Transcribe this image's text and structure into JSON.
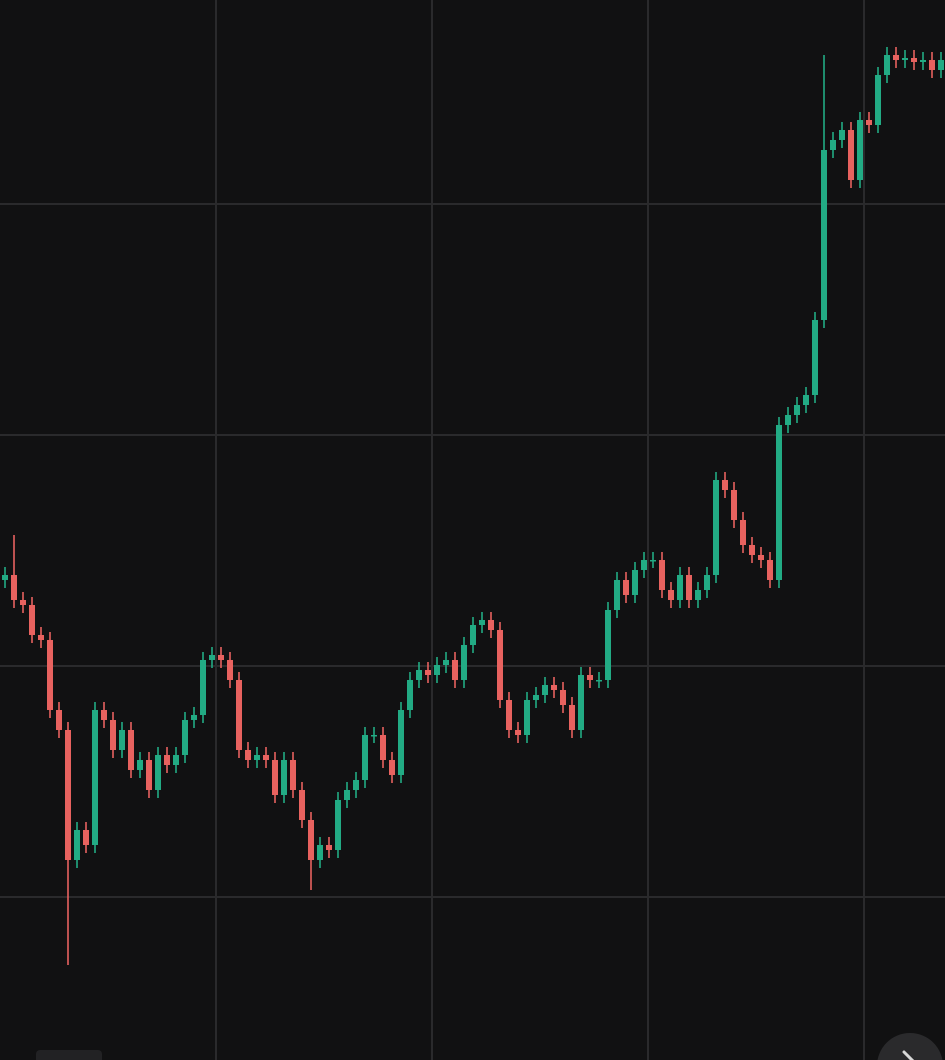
{
  "chart_data": {
    "type": "candlestick",
    "ylim": [
      0,
      1060
    ],
    "yticks": [
      163,
      394,
      625,
      856
    ],
    "grid": true,
    "up_color": "#22ab84",
    "down_color": "#e8625f",
    "open": [
      480,
      485,
      460,
      455,
      425,
      420,
      350,
      330,
      200,
      230,
      215,
      350,
      340,
      310,
      330,
      290,
      300,
      270,
      305,
      295,
      305,
      340,
      345,
      400,
      405,
      400,
      380,
      310,
      300,
      305,
      300,
      265,
      300,
      270,
      240,
      200,
      215,
      210,
      260,
      270,
      280,
      325,
      325,
      300,
      285,
      350,
      380,
      390,
      385,
      395,
      400,
      380,
      415,
      435,
      440,
      430,
      360,
      330,
      325,
      360,
      365,
      375,
      370,
      355,
      330,
      385,
      380,
      380,
      450,
      480,
      465,
      490,
      500,
      500,
      470,
      460,
      485,
      460,
      470,
      485,
      580,
      570,
      540,
      515,
      505,
      500,
      480,
      635,
      645,
      655,
      665,
      740,
      910,
      920,
      930,
      880,
      940,
      935,
      985,
      1005,
      1000,
      1002,
      998,
      1000,
      990
    ],
    "high": [
      493,
      525,
      468,
      463,
      433,
      428,
      358,
      338,
      238,
      238,
      358,
      358,
      348,
      338,
      338,
      308,
      308,
      313,
      313,
      313,
      348,
      353,
      408,
      413,
      413,
      408,
      388,
      318,
      313,
      313,
      308,
      308,
      308,
      278,
      248,
      223,
      223,
      268,
      278,
      288,
      333,
      333,
      333,
      308,
      358,
      388,
      398,
      398,
      403,
      408,
      408,
      423,
      443,
      448,
      448,
      438,
      368,
      338,
      368,
      373,
      383,
      383,
      378,
      363,
      393,
      393,
      388,
      458,
      488,
      488,
      498,
      508,
      508,
      508,
      478,
      493,
      493,
      478,
      493,
      588,
      588,
      578,
      548,
      523,
      513,
      508,
      643,
      653,
      663,
      673,
      748,
      1005,
      928,
      938,
      938,
      948,
      948,
      993,
      1013,
      1013,
      1010,
      1010,
      1008,
      1008,
      1008
    ],
    "low": [
      472,
      452,
      447,
      417,
      412,
      342,
      322,
      95,
      192,
      207,
      207,
      332,
      302,
      302,
      282,
      282,
      262,
      262,
      287,
      287,
      297,
      332,
      337,
      392,
      392,
      372,
      302,
      292,
      292,
      292,
      257,
      257,
      262,
      232,
      170,
      192,
      202,
      202,
      252,
      262,
      272,
      317,
      292,
      277,
      277,
      342,
      372,
      377,
      377,
      387,
      372,
      372,
      407,
      427,
      422,
      352,
      322,
      317,
      317,
      352,
      357,
      362,
      347,
      322,
      322,
      372,
      372,
      372,
      442,
      457,
      457,
      482,
      492,
      462,
      452,
      452,
      452,
      452,
      462,
      477,
      562,
      532,
      507,
      497,
      492,
      472,
      472,
      627,
      637,
      647,
      657,
      732,
      902,
      912,
      872,
      872,
      927,
      927,
      977,
      992,
      992,
      990,
      990,
      982,
      982
    ],
    "close": [
      485,
      460,
      455,
      425,
      420,
      350,
      330,
      200,
      230,
      215,
      350,
      340,
      310,
      330,
      290,
      300,
      270,
      305,
      295,
      305,
      340,
      345,
      400,
      405,
      400,
      380,
      310,
      300,
      305,
      300,
      265,
      300,
      270,
      240,
      200,
      215,
      210,
      260,
      270,
      280,
      325,
      325,
      300,
      285,
      350,
      380,
      390,
      385,
      395,
      400,
      380,
      415,
      435,
      440,
      430,
      360,
      330,
      325,
      360,
      365,
      375,
      370,
      355,
      330,
      385,
      380,
      380,
      450,
      480,
      465,
      490,
      500,
      500,
      470,
      460,
      485,
      460,
      470,
      485,
      580,
      570,
      540,
      515,
      505,
      500,
      480,
      635,
      645,
      655,
      665,
      740,
      910,
      920,
      930,
      880,
      940,
      935,
      985,
      1005,
      1000,
      1002,
      998,
      1000,
      990,
      1000
    ]
  }
}
